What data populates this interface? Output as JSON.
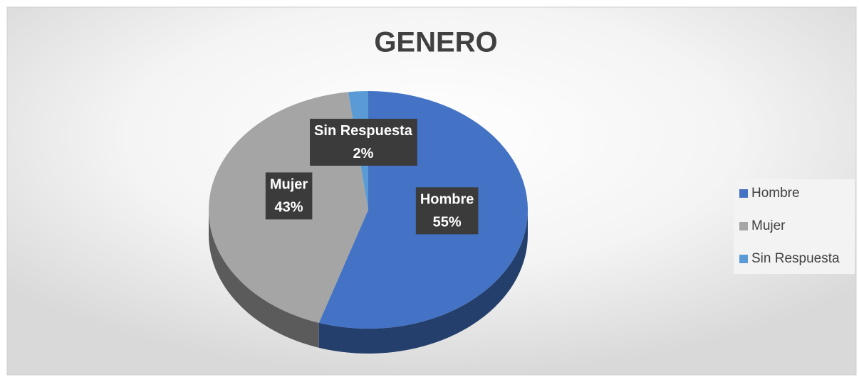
{
  "chart_data": {
    "type": "pie",
    "title": "GENERO",
    "categories": [
      "Hombre",
      "Mujer",
      "Sin Respuesta"
    ],
    "values": [
      55,
      43,
      2
    ],
    "value_labels": [
      "55%",
      "43%",
      "2%"
    ],
    "colors": [
      "#4472c4",
      "#a5a5a5",
      "#5b9bd5"
    ],
    "legend": "right"
  }
}
